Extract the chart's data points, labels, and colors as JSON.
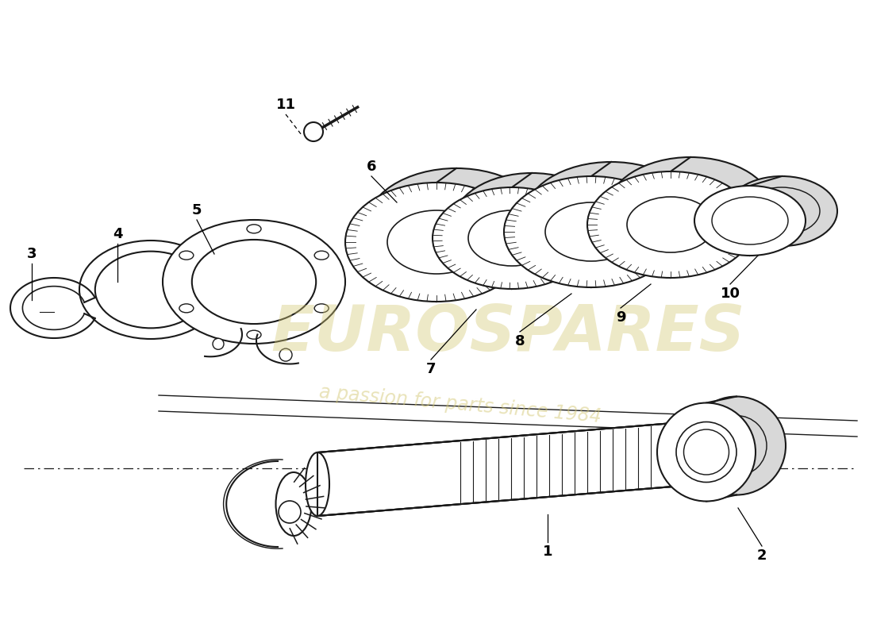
{
  "background_color": "#ffffff",
  "line_color": "#1a1a1a",
  "watermark_text1": "EUROSPARES",
  "watermark_text2": "a passion for parts since 1984",
  "watermark_color": "#d4c875",
  "watermark_alpha": 0.4,
  "label_fontsize": 13,
  "label_color": "#000000"
}
